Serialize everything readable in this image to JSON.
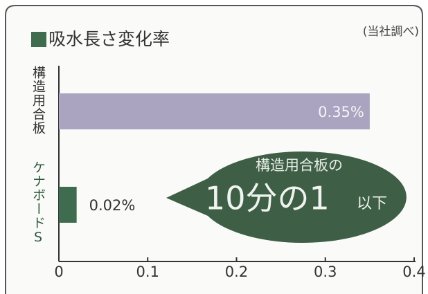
{
  "chart_data": {
    "type": "barh",
    "title": "吸水長さ変化率",
    "note": "(当社調べ)",
    "categories": [
      "構造用合板",
      "ケナボードS"
    ],
    "values": [
      0.35,
      0.02
    ],
    "value_labels": [
      "0.35%",
      "0.02%"
    ],
    "colors": [
      "#aaa4c0",
      "#3f6b4f"
    ],
    "title_marker_color": "#3f6b4f",
    "xlim": [
      0,
      0.4
    ],
    "xticks": [
      0,
      0.1,
      0.2,
      0.3,
      0.4
    ],
    "annotation": {
      "line1": "構造用合板の",
      "emphasis": "10分の1",
      "suffix": "以下"
    }
  }
}
